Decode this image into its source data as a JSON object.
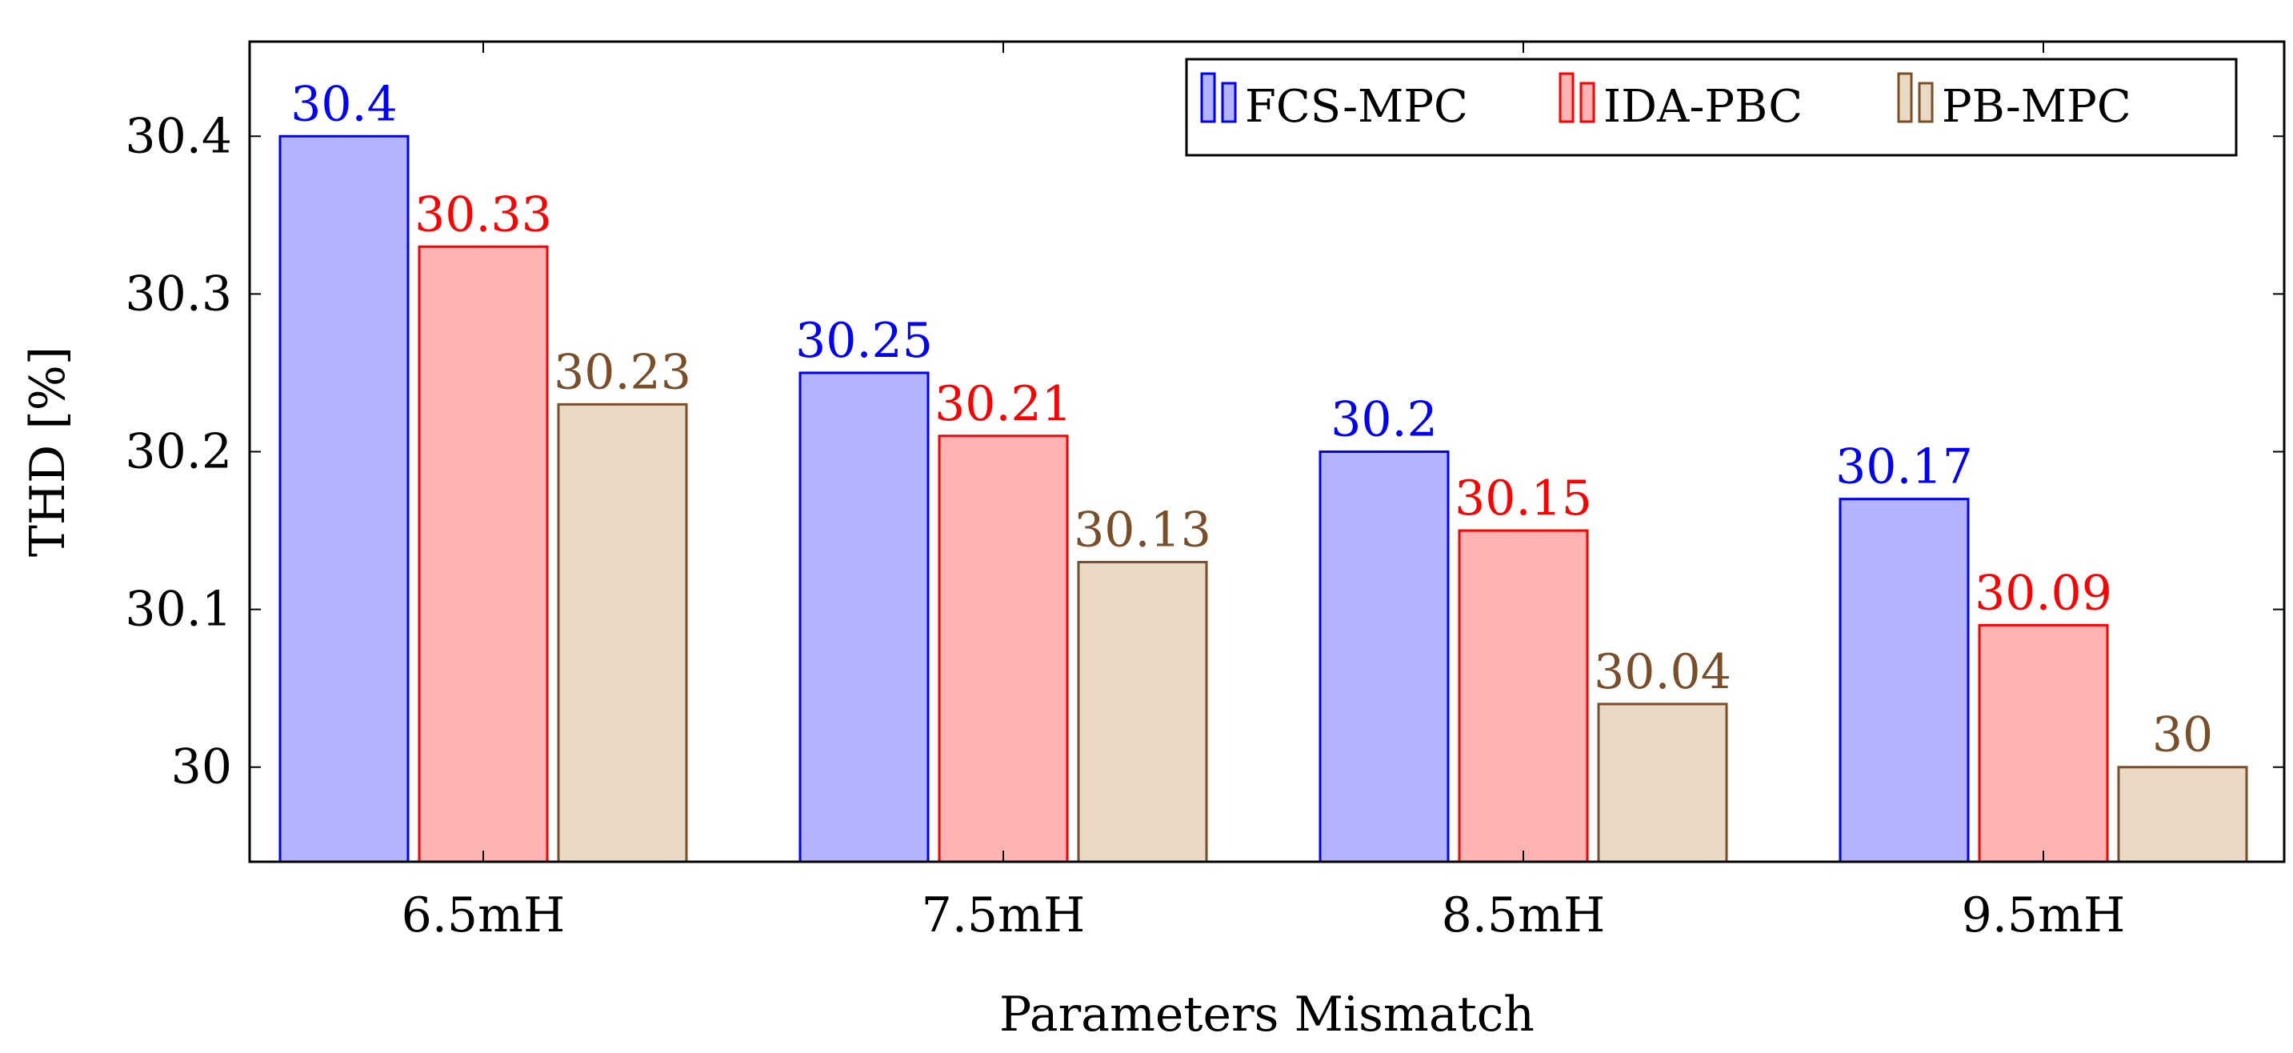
{
  "chart_data": {
    "type": "bar",
    "xlabel": "Parameters Mismatch",
    "ylabel": "THD [%]",
    "categories": [
      "6.5mH",
      "7.5mH",
      "8.5mH",
      "9.5mH"
    ],
    "ylim": [
      29.94,
      30.46
    ],
    "yticks": [
      30,
      30.1,
      30.2,
      30.3,
      30.4
    ],
    "ytick_labels": [
      "30",
      "30.1",
      "30.2",
      "30.3",
      "30.4"
    ],
    "grid": false,
    "legend_position": "top-right",
    "series": [
      {
        "name": "FCS-MPC",
        "values": [
          30.4,
          30.25,
          30.2,
          30.17
        ],
        "value_labels": [
          "30.4",
          "30.25",
          "30.2",
          "30.17"
        ],
        "fill": "#b3b3ff",
        "stroke": "#0000ff"
      },
      {
        "name": "IDA-PBC",
        "values": [
          30.33,
          30.21,
          30.15,
          30.09
        ],
        "value_labels": [
          "30.33",
          "30.21",
          "30.15",
          "30.09"
        ],
        "fill": "#ffb3b3",
        "stroke": "#ff0000"
      },
      {
        "name": "PB-MPC",
        "values": [
          30.23,
          30.13,
          30.04,
          30
        ],
        "value_labels": [
          "30.23",
          "30.13",
          "30.04",
          "30"
        ],
        "fill": "#ead9c4",
        "stroke": "#7a4e28"
      }
    ]
  }
}
